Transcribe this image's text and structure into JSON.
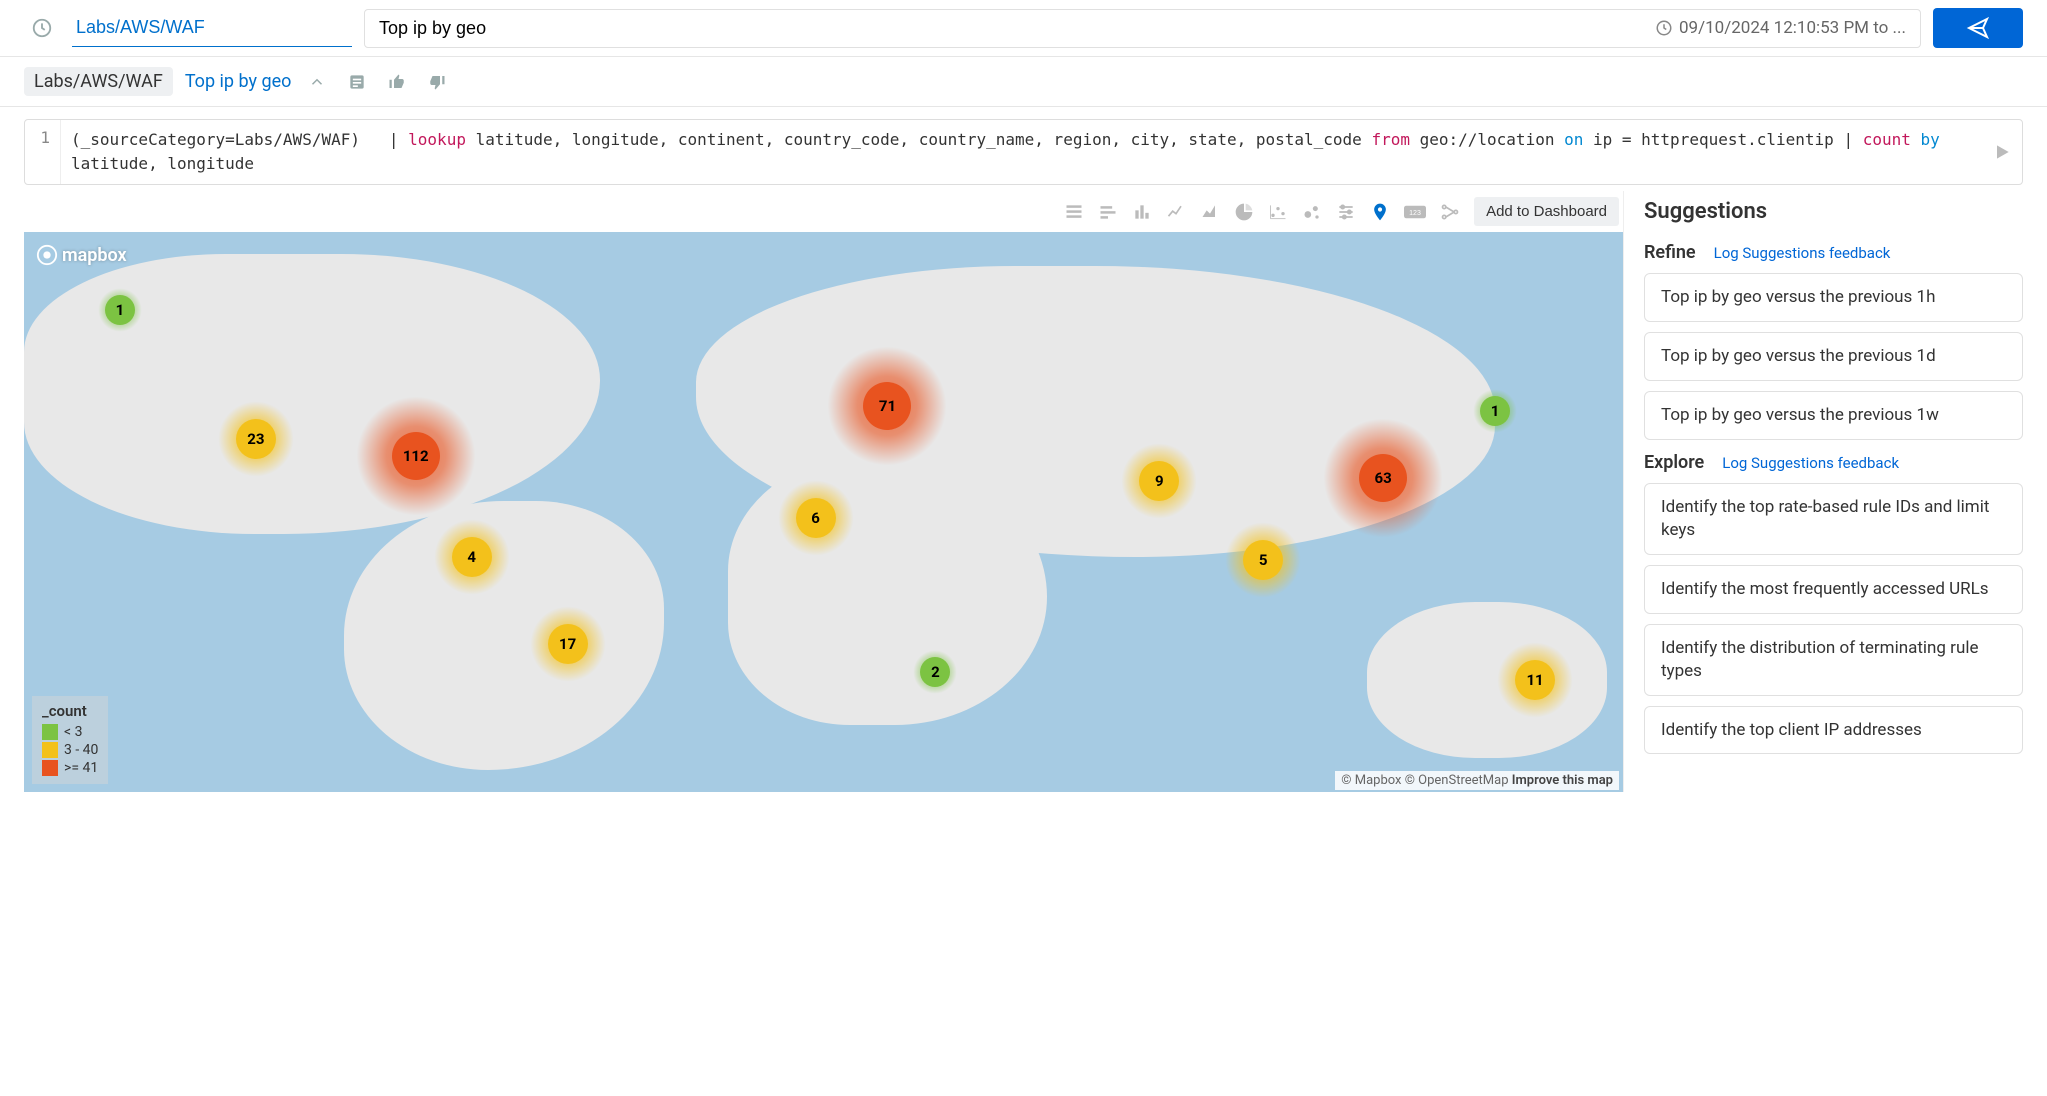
{
  "header": {
    "source_category": "Labs/AWS/WAF",
    "query_text": "Top ip by geo",
    "time_range": "09/10/2024 12:10:53 PM to ..."
  },
  "breadcrumb": {
    "path": "Labs/AWS/WAF",
    "title": "Top ip by geo"
  },
  "code": {
    "line_number": "1",
    "query_plain": "(_sourceCategory=Labs/AWS/WAF)   | lookup latitude, longitude, continent, country_code, country_name, region, city, state, postal_code from geo://location on ip = httprequest.clientip | count by latitude, longitude",
    "tokens": [
      {
        "t": "(_sourceCategory=Labs/AWS/WAF)   | "
      },
      {
        "t": "lookup",
        "c": "kw-pink"
      },
      {
        "t": " latitude, longitude, continent, country_code, country_name, region, city, state, postal_code "
      },
      {
        "t": "from",
        "c": "kw-pink"
      },
      {
        "t": " geo://location "
      },
      {
        "t": "on",
        "c": "kw-blue"
      },
      {
        "t": " ip = httprequest.clientip | "
      },
      {
        "t": "count",
        "c": "kw-pink"
      },
      {
        "t": " "
      },
      {
        "t": "by",
        "c": "kw-blue"
      },
      {
        "t": " latitude, longitude"
      }
    ]
  },
  "toolbar": {
    "add_to_dashboard": "Add to Dashboard"
  },
  "map": {
    "logo_text": "mapbox",
    "attribution_mapbox": "© Mapbox",
    "attribution_osm": "© OpenStreetMap",
    "attribution_improve": "Improve this map",
    "background_color": "#a6cbe3",
    "land_color": "#e8e8e8",
    "legend": {
      "title": "_count",
      "items": [
        {
          "color": "#7cc342",
          "label": "< 3"
        },
        {
          "color": "#f3c11b",
          "label": "3 - 40"
        },
        {
          "color": "#e8531f",
          "label": ">= 41"
        }
      ]
    },
    "bubbles": [
      {
        "value": 1,
        "x": 6.0,
        "y": 14.0,
        "tier": "green",
        "size": "sm"
      },
      {
        "value": 23,
        "x": 14.5,
        "y": 37.0,
        "tier": "yellow",
        "size": "md"
      },
      {
        "value": 112,
        "x": 24.5,
        "y": 40.0,
        "tier": "red",
        "size": "lg"
      },
      {
        "value": 4,
        "x": 28.0,
        "y": 58.0,
        "tier": "yellow",
        "size": "md"
      },
      {
        "value": 17,
        "x": 34.0,
        "y": 73.5,
        "tier": "yellow",
        "size": "md"
      },
      {
        "value": 71,
        "x": 54.0,
        "y": 31.0,
        "tier": "red",
        "size": "lg"
      },
      {
        "value": 6,
        "x": 49.5,
        "y": 51.0,
        "tier": "yellow",
        "size": "md"
      },
      {
        "value": 2,
        "x": 57.0,
        "y": 78.5,
        "tier": "green",
        "size": "sm"
      },
      {
        "value": 9,
        "x": 71.0,
        "y": 44.5,
        "tier": "yellow",
        "size": "md"
      },
      {
        "value": 5,
        "x": 77.5,
        "y": 58.5,
        "tier": "yellow",
        "size": "md"
      },
      {
        "value": 63,
        "x": 85.0,
        "y": 44.0,
        "tier": "red",
        "size": "lg"
      },
      {
        "value": 1,
        "x": 92.0,
        "y": 32.0,
        "tier": "green",
        "size": "sm"
      },
      {
        "value": 11,
        "x": 94.5,
        "y": 80.0,
        "tier": "yellow",
        "size": "md"
      }
    ],
    "tier_colors": {
      "green": "#7cc342",
      "yellow": "#f3c11b",
      "red": "#e8531f"
    },
    "glow_radius": {
      "sm": 22,
      "md": 38,
      "lg": 60
    }
  },
  "suggestions": {
    "title": "Suggestions",
    "refine_label": "Refine",
    "explore_label": "Explore",
    "feedback_link": "Log Suggestions feedback",
    "refine_items": [
      "Top ip by geo versus the previous 1h",
      "Top ip by geo versus the previous 1d",
      "Top ip by geo versus the previous 1w"
    ],
    "explore_items": [
      "Identify the top rate-based rule IDs and limit keys",
      "Identify the most frequently accessed URLs",
      "Identify the distribution of terminating rule types",
      "Identify the top client IP addresses"
    ]
  }
}
